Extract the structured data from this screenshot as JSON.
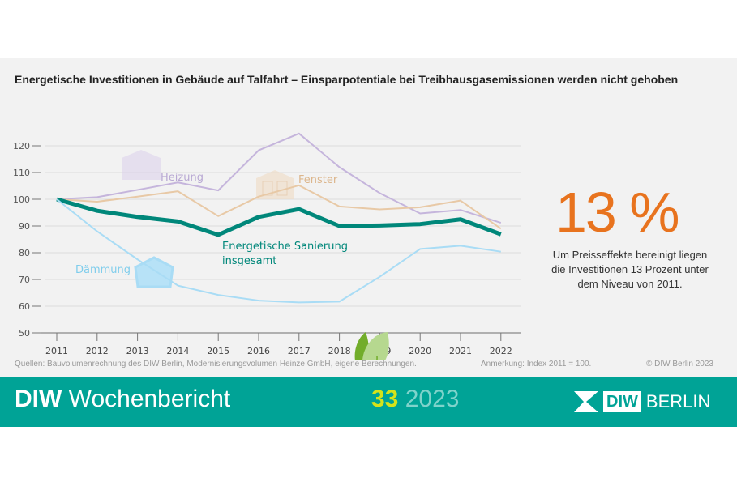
{
  "title": "Energetische Investitionen in Gebäude auf Talfahrt – Einsparpotentiale bei Treibhausgasemissionen werden nicht gehoben",
  "highlight": {
    "value": "13 %",
    "text": "Um Preisseffekte bereinigt liegen die Investitionen 13 Prozent unter dem Niveau von 2011.",
    "color": "#e8731e"
  },
  "footer": {
    "sources": "Quellen: Bauvolumenrechnung des DIW Berlin, Modernisierungsvolumen Heinze GmbH, eigene Berechnungen.",
    "note": "Anmerkung: Index 2011 = 100.",
    "copyright": "© DIW Berlin 2023"
  },
  "banner": {
    "brand_bold": "DIW",
    "brand": "Wochenbericht",
    "issue": "33",
    "year": "2023",
    "logo_box": "DIW",
    "logo_city": "BERLIN",
    "color": "#00a396"
  },
  "chart_data": {
    "type": "line",
    "x": [
      2011,
      2012,
      2013,
      2014,
      2015,
      2016,
      2017,
      2018,
      2019,
      2020,
      2021,
      2022
    ],
    "ylim": [
      50,
      125
    ],
    "yticks": [
      50,
      60,
      70,
      80,
      90,
      100,
      110,
      120
    ],
    "grid": true,
    "series": [
      {
        "name": "Heizung",
        "color": "#c5b5dc",
        "values": [
          100,
          100.8,
          103.5,
          106.3,
          103.3,
          118.3,
          124.6,
          112,
          102.3,
          94.7,
          96,
          91.2
        ]
      },
      {
        "name": "Fenster",
        "color": "#e8c9a6",
        "values": [
          100,
          99.1,
          101,
          103,
          93.7,
          101,
          105.2,
          97.3,
          96.2,
          97,
          99.5,
          89
        ]
      },
      {
        "name": "Energetische Sanierung insgesamt",
        "color": "#00877a",
        "values": [
          100,
          95.7,
          93.4,
          91.7,
          86.7,
          93.4,
          96.3,
          90,
          90.2,
          90.7,
          92.5,
          86.9
        ]
      },
      {
        "name": "Dämmung",
        "color": "#a9dcf5",
        "values": [
          100,
          88,
          77.5,
          67.7,
          64.2,
          62.1,
          61.4,
          61.7,
          71,
          81.4,
          82.6,
          80.4
        ]
      }
    ],
    "labels": {
      "heizung": "Heizung",
      "fenster": "Fenster",
      "total_1": "Energetische Sanierung",
      "total_2": "insgesamt",
      "daemmung": "Dämmung"
    }
  }
}
